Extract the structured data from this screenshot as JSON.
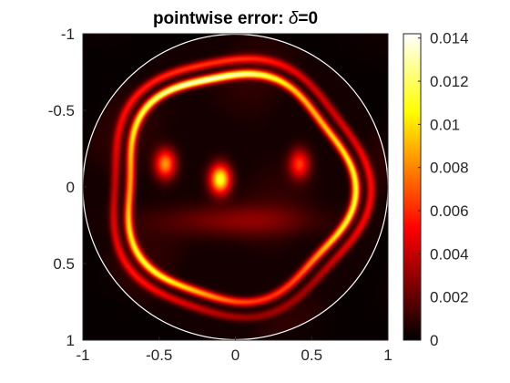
{
  "chart_data": {
    "type": "heatmap",
    "title": "pointwise error: ",
    "title_symbol": "δ",
    "title_suffix": "=0",
    "xlabel": "",
    "ylabel": "",
    "xlim": [
      -1,
      1
    ],
    "ylim": [
      -1,
      1
    ],
    "y_axis_direction": "reversed",
    "x_ticks": [
      "-1",
      "-0.5",
      "0",
      "0.5",
      "1"
    ],
    "y_ticks": [
      "-1",
      "-0.5",
      "0",
      "0.5",
      "1"
    ],
    "x_tick_values": [
      -1,
      -0.5,
      0,
      0.5,
      1
    ],
    "y_tick_values": [
      -1,
      -0.5,
      0,
      0.5,
      1
    ],
    "colorbar": {
      "colormap": "hot",
      "clim": [
        0,
        0.0142
      ],
      "ticks": [
        "0",
        "0.002",
        "0.004",
        "0.006",
        "0.008",
        "0.01",
        "0.012",
        "0.014"
      ],
      "tick_values": [
        0,
        0.002,
        0.004,
        0.006,
        0.008,
        0.01,
        0.012,
        0.014
      ]
    },
    "domain_boundary": {
      "shape": "circle",
      "center": [
        0,
        0
      ],
      "radius": 1,
      "color": "#ffffff"
    },
    "features": [
      {
        "kind": "ring",
        "center": [
          0,
          0
        ],
        "radius": 0.74,
        "peak_error": 0.0135
      },
      {
        "kind": "ring",
        "center": [
          0,
          0
        ],
        "radius": 0.84,
        "peak_error": 0.006
      },
      {
        "kind": "spot",
        "center": [
          -0.1,
          -0.05
        ],
        "peak_error": 0.011
      },
      {
        "kind": "spot",
        "center": [
          -0.46,
          -0.15
        ],
        "peak_error": 0.008
      },
      {
        "kind": "spot",
        "center": [
          0.42,
          -0.15
        ],
        "peak_error": 0.006
      }
    ],
    "grid": false,
    "legend": "none"
  }
}
